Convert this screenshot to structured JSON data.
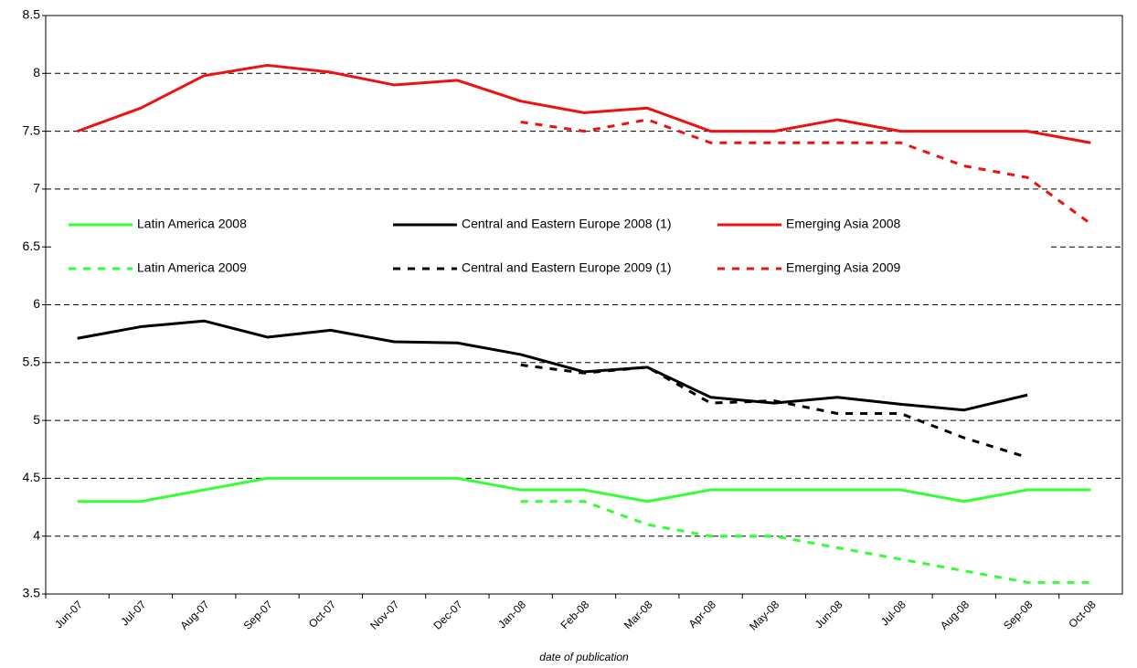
{
  "chart_data": {
    "type": "line",
    "x_label": "date of publication",
    "categories": [
      "Jun-07",
      "Jul-07",
      "Aug-07",
      "Sep-07",
      "Oct-07",
      "Nov-07",
      "Dec-07",
      "Jan-08",
      "Feb-08",
      "Mar-08",
      "Apr-08",
      "May-08",
      "Jun-08",
      "Jul-08",
      "Aug-08",
      "Sep-08",
      "Oct-08"
    ],
    "series": [
      {
        "name": "Latin America 2008",
        "color": "#33ff33",
        "dashed": false,
        "values": [
          4.3,
          4.3,
          4.4,
          4.5,
          4.5,
          4.5,
          4.5,
          4.4,
          4.4,
          4.3,
          4.4,
          4.4,
          4.4,
          4.4,
          4.3,
          4.4,
          4.4
        ]
      },
      {
        "name": "Central and Eastern Europe 2008 (1)",
        "color": "#000000",
        "dashed": false,
        "values": [
          5.71,
          5.81,
          5.86,
          5.72,
          5.78,
          5.68,
          5.67,
          5.57,
          5.42,
          5.46,
          5.2,
          5.15,
          5.2,
          5.14,
          5.09,
          5.22,
          null
        ]
      },
      {
        "name": "Emerging Asia 2008",
        "color": "#ee1111",
        "dashed": false,
        "values": [
          7.5,
          7.7,
          7.98,
          8.07,
          8.01,
          7.9,
          7.94,
          7.76,
          7.66,
          7.7,
          7.5,
          7.5,
          7.6,
          7.5,
          7.5,
          7.5,
          7.4
        ]
      },
      {
        "name": "Latin America 2009",
        "color": "#33ff33",
        "dashed": true,
        "values": [
          null,
          null,
          null,
          null,
          null,
          null,
          null,
          4.3,
          4.3,
          4.1,
          4.0,
          4.0,
          3.9,
          3.8,
          3.7,
          3.6,
          3.6
        ]
      },
      {
        "name": "Central and Eastern Europe 2009 (1)",
        "color": "#000000",
        "dashed": true,
        "values": [
          null,
          null,
          null,
          null,
          null,
          null,
          null,
          5.48,
          5.41,
          5.46,
          5.15,
          5.17,
          5.06,
          5.06,
          4.85,
          4.68,
          null
        ]
      },
      {
        "name": "Emerging Asia 2009",
        "color": "#ee1111",
        "dashed": true,
        "values": [
          null,
          null,
          null,
          null,
          null,
          null,
          null,
          7.58,
          7.5,
          7.6,
          7.4,
          7.4,
          7.4,
          7.4,
          7.2,
          7.1,
          6.7
        ]
      }
    ],
    "ylim": [
      3.5,
      8.5
    ],
    "yticks": [
      3.5,
      4,
      4.5,
      5,
      5.5,
      6,
      6.5,
      7,
      7.5,
      8,
      8.5
    ],
    "grid": true,
    "legend": "inside-middle-left"
  }
}
